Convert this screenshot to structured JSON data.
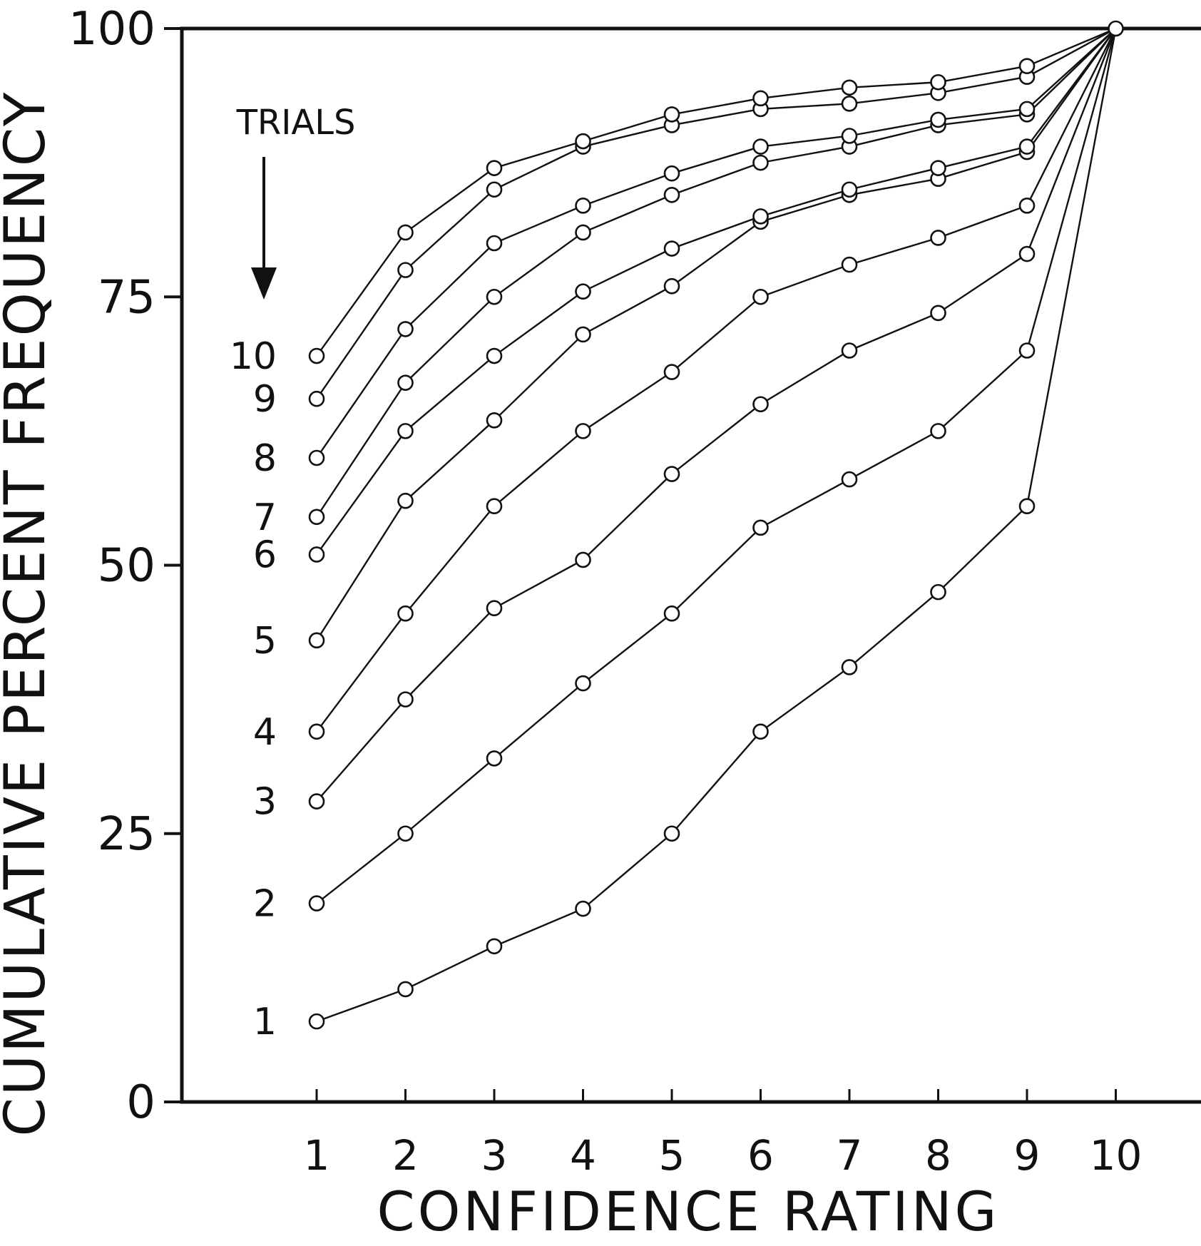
{
  "chart_data": {
    "type": "line",
    "xlabel": "CONFIDENCE RATING",
    "ylabel": "CUMULATIVE PERCENT FREQUENCY",
    "legend_title": "TRIALS",
    "xlim": [
      0,
      10
    ],
    "ylim": [
      0,
      100
    ],
    "x_ticks": [
      "1",
      "2",
      "3",
      "4",
      "5",
      "6",
      "7",
      "8",
      "9",
      "10"
    ],
    "y_ticks": [
      "0",
      "25",
      "50",
      "75",
      "100"
    ],
    "grid": false,
    "x": [
      1,
      2,
      3,
      4,
      5,
      6,
      7,
      8,
      9,
      10
    ],
    "series": [
      {
        "name": "1",
        "values": [
          7.5,
          10.5,
          14.5,
          18,
          25,
          34.5,
          40.5,
          47.5,
          55.5,
          100
        ]
      },
      {
        "name": "2",
        "values": [
          18.5,
          25,
          32,
          39,
          45.5,
          53.5,
          58,
          62.5,
          70,
          100
        ]
      },
      {
        "name": "3",
        "values": [
          28,
          37.5,
          46,
          50.5,
          58.5,
          65,
          70,
          73.5,
          79,
          100
        ]
      },
      {
        "name": "4",
        "values": [
          34.5,
          45.5,
          55.5,
          62.5,
          68,
          75,
          78,
          80.5,
          83.5,
          100
        ]
      },
      {
        "name": "5",
        "values": [
          43,
          56,
          63.5,
          71.5,
          76,
          82,
          84.5,
          86,
          88.5,
          100
        ]
      },
      {
        "name": "6",
        "values": [
          51,
          62.5,
          69.5,
          75.5,
          79.5,
          82.5,
          85,
          87,
          89,
          100
        ]
      },
      {
        "name": "7",
        "values": [
          54.5,
          67,
          75,
          81,
          84.5,
          87.5,
          89,
          91,
          92,
          100
        ]
      },
      {
        "name": "8",
        "values": [
          60,
          72,
          80,
          83.5,
          86.5,
          89,
          90,
          91.5,
          92.5,
          100
        ]
      },
      {
        "name": "9",
        "values": [
          65.5,
          77.5,
          85,
          89,
          91,
          92.5,
          93,
          94,
          95.5,
          100
        ]
      },
      {
        "name": "10",
        "values": [
          69.5,
          81,
          87,
          89.5,
          92,
          93.5,
          94.5,
          95,
          96.5,
          100
        ]
      }
    ]
  }
}
